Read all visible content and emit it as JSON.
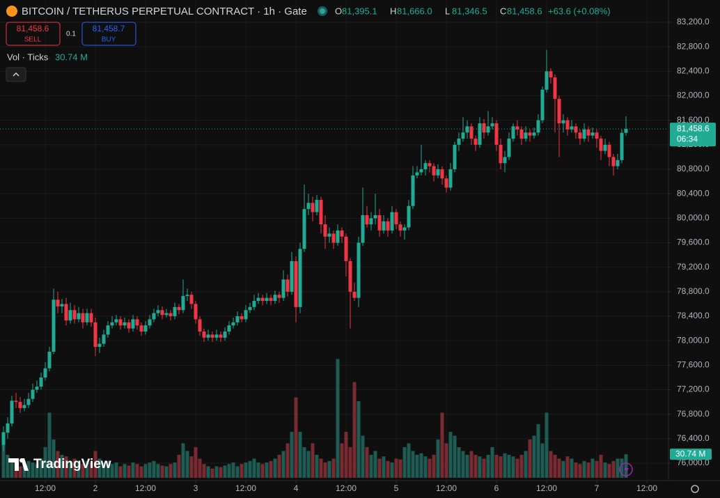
{
  "chart_data": {
    "type": "candlestick",
    "title": "BITCOIN / TETHERUS PERPETUAL CONTRACT · 1h · Gate",
    "ohlc": [
      {
        "label": "O",
        "value": "81,395.1"
      },
      {
        "label": "H",
        "value": "81,666.0"
      },
      {
        "label": "L",
        "value": "81,346.5"
      },
      {
        "label": "C",
        "value": "81,458.6"
      }
    ],
    "change": "+63.6 (+0.08%)",
    "sell": {
      "price": "81,458.6",
      "label": "SELL"
    },
    "spread": "0.1",
    "buy": {
      "price": "81,458.7",
      "label": "BUY"
    },
    "volume_legend": "Vol · Ticks",
    "volume_last_label": "30.74 M",
    "last_price": {
      "value": 81458.6,
      "label": "81,458.6"
    },
    "countdown": "06:34",
    "watermark": "TradingView",
    "up_color": "#22ab94",
    "down_color": "#f23645",
    "volume_up_color": "#1e5b52",
    "volume_down_color": "#7a2b31",
    "grid": true,
    "xlim": [
      -0.833,
      159.167
    ],
    "ylim": [
      75716,
      83564
    ],
    "yticks": [
      {
        "value": 83200,
        "label": "83,200.0"
      },
      {
        "value": 82800,
        "label": "82,800.0"
      },
      {
        "value": 82400,
        "label": "82,400.0"
      },
      {
        "value": 82000,
        "label": "82,000.0"
      },
      {
        "value": 81600,
        "label": "81,600.0"
      },
      {
        "value": 81200,
        "label": "81,200.0"
      },
      {
        "value": 80800,
        "label": "80,800.0"
      },
      {
        "value": 80400,
        "label": "80,400.0"
      },
      {
        "value": 80000,
        "label": "80,000.0"
      },
      {
        "value": 79600,
        "label": "79,600.0"
      },
      {
        "value": 79200,
        "label": "79,200.0"
      },
      {
        "value": 78800,
        "label": "78,800.0"
      },
      {
        "value": 78400,
        "label": "78,400.0"
      },
      {
        "value": 78000,
        "label": "78,000.0"
      },
      {
        "value": 77600,
        "label": "77,600.0"
      },
      {
        "value": 77200,
        "label": "77,200.0"
      },
      {
        "value": 76800,
        "label": "76,800.0"
      },
      {
        "value": 76400,
        "label": "76,400.0"
      },
      {
        "value": 76000,
        "label": "76,000.0"
      }
    ],
    "xticks": [
      {
        "value": 10,
        "label": "12:00"
      },
      {
        "value": 22,
        "label": "2"
      },
      {
        "value": 34,
        "label": "12:00"
      },
      {
        "value": 46,
        "label": "3"
      },
      {
        "value": 58,
        "label": "12:00"
      },
      {
        "value": 70,
        "label": "4"
      },
      {
        "value": 82,
        "label": "12:00"
      },
      {
        "value": 94,
        "label": "5"
      },
      {
        "value": 106,
        "label": "12:00"
      },
      {
        "value": 118,
        "label": "6"
      },
      {
        "value": 130,
        "label": "12:00"
      },
      {
        "value": 142,
        "label": "7"
      },
      {
        "value": 154,
        "label": "12:00"
      }
    ],
    "candles": [
      [
        76300,
        76600,
        76200,
        76500
      ],
      [
        76500,
        76750,
        76400,
        76650
      ],
      [
        76650,
        77100,
        76600,
        77020
      ],
      [
        77020,
        77150,
        76900,
        77000
      ],
      [
        77000,
        77080,
        76820,
        76900
      ],
      [
        76900,
        77050,
        76850,
        76950
      ],
      [
        76950,
        77150,
        76900,
        77050
      ],
      [
        77050,
        77300,
        77000,
        77200
      ],
      [
        77200,
        77350,
        77150,
        77250
      ],
      [
        77250,
        77480,
        77200,
        77400
      ],
      [
        77400,
        77650,
        77350,
        77550
      ],
      [
        77550,
        77900,
        77500,
        77820
      ],
      [
        77820,
        78850,
        77780,
        78670
      ],
      [
        78670,
        78800,
        78450,
        78560
      ],
      [
        78560,
        78680,
        78450,
        78600
      ],
      [
        78600,
        78700,
        78250,
        78330
      ],
      [
        78330,
        78620,
        78280,
        78500
      ],
      [
        78500,
        78580,
        78280,
        78350
      ],
      [
        78350,
        78550,
        78300,
        78450
      ],
      [
        78450,
        78520,
        78200,
        78300
      ],
      [
        78300,
        78520,
        78250,
        78450
      ],
      [
        78450,
        78520,
        78230,
        78300
      ],
      [
        78300,
        78380,
        77750,
        77900
      ],
      [
        77900,
        78050,
        77800,
        77950
      ],
      [
        77950,
        78180,
        77900,
        78100
      ],
      [
        78100,
        78320,
        78050,
        78250
      ],
      [
        78250,
        78400,
        78200,
        78300
      ],
      [
        78300,
        78420,
        78250,
        78350
      ],
      [
        78350,
        78400,
        78180,
        78250
      ],
      [
        78250,
        78380,
        78200,
        78300
      ],
      [
        78300,
        78350,
        78130,
        78200
      ],
      [
        78200,
        78420,
        78150,
        78350
      ],
      [
        78350,
        78400,
        78180,
        78250
      ],
      [
        78250,
        78300,
        78080,
        78150
      ],
      [
        78150,
        78320,
        78100,
        78250
      ],
      [
        78250,
        78420,
        78200,
        78350
      ],
      [
        78350,
        78520,
        78300,
        78450
      ],
      [
        78450,
        78580,
        78400,
        78500
      ],
      [
        78500,
        78560,
        78350,
        78420
      ],
      [
        78420,
        78520,
        78380,
        78450
      ],
      [
        78450,
        78500,
        78330,
        78400
      ],
      [
        78400,
        78620,
        78350,
        78550
      ],
      [
        78550,
        78600,
        78430,
        78500
      ],
      [
        78500,
        79000,
        78450,
        78730
      ],
      [
        78730,
        78850,
        78650,
        78750
      ],
      [
        78750,
        78800,
        78520,
        78600
      ],
      [
        78600,
        78650,
        78280,
        78350
      ],
      [
        78350,
        78400,
        78080,
        78150
      ],
      [
        78150,
        78200,
        77980,
        78050
      ],
      [
        78050,
        78180,
        78000,
        78100
      ],
      [
        78100,
        78150,
        77980,
        78050
      ],
      [
        78050,
        78180,
        78000,
        78100
      ],
      [
        78100,
        78150,
        77980,
        78050
      ],
      [
        78050,
        78220,
        78000,
        78150
      ],
      [
        78150,
        78320,
        78100,
        78250
      ],
      [
        78250,
        78380,
        78200,
        78300
      ],
      [
        78300,
        78480,
        78250,
        78400
      ],
      [
        78400,
        78450,
        78300,
        78350
      ],
      [
        78350,
        78580,
        78300,
        78500
      ],
      [
        78500,
        78620,
        78450,
        78550
      ],
      [
        78550,
        78750,
        78500,
        78650
      ],
      [
        78650,
        78780,
        78600,
        78700
      ],
      [
        78700,
        78750,
        78580,
        78650
      ],
      [
        78650,
        78780,
        78600,
        78700
      ],
      [
        78700,
        78750,
        78580,
        78650
      ],
      [
        78650,
        78820,
        78600,
        78750
      ],
      [
        78750,
        78800,
        78620,
        78700
      ],
      [
        78700,
        79150,
        78650,
        79000
      ],
      [
        79000,
        79080,
        78720,
        78800
      ],
      [
        78800,
        79450,
        78750,
        79300
      ],
      [
        79300,
        79380,
        78300,
        78550
      ],
      [
        78550,
        79600,
        78450,
        79500
      ],
      [
        79500,
        80550,
        79450,
        80150
      ],
      [
        80150,
        80400,
        80050,
        80250
      ],
      [
        80250,
        80350,
        79950,
        80100
      ],
      [
        80100,
        80380,
        80050,
        80300
      ],
      [
        80300,
        80350,
        79750,
        79900
      ],
      [
        79900,
        80050,
        79500,
        79700
      ],
      [
        79700,
        79850,
        79600,
        79750
      ],
      [
        79750,
        79800,
        79500,
        79600
      ],
      [
        79600,
        79900,
        79550,
        79800
      ],
      [
        79800,
        79850,
        79600,
        79700
      ],
      [
        79700,
        79750,
        79050,
        79300
      ],
      [
        79300,
        79350,
        78200,
        78800
      ],
      [
        78800,
        78950,
        78650,
        78700
      ],
      [
        78700,
        79700,
        78550,
        79600
      ],
      [
        79600,
        80500,
        79550,
        80050
      ],
      [
        80050,
        80200,
        79850,
        79900
      ],
      [
        79900,
        80100,
        79800,
        80000
      ],
      [
        80000,
        80400,
        79900,
        80050
      ],
      [
        80050,
        80150,
        79700,
        79800
      ],
      [
        79800,
        80050,
        79750,
        79950
      ],
      [
        79950,
        80000,
        79700,
        79800
      ],
      [
        79800,
        80200,
        79750,
        80100
      ],
      [
        80100,
        80150,
        79820,
        79900
      ],
      [
        79900,
        79950,
        79700,
        79800
      ],
      [
        79800,
        79900,
        79650,
        79850
      ],
      [
        79850,
        80300,
        79800,
        80200
      ],
      [
        80200,
        80850,
        80150,
        80700
      ],
      [
        80700,
        80850,
        80650,
        80750
      ],
      [
        80750,
        81200,
        80700,
        80800
      ],
      [
        80800,
        80950,
        80700,
        80900
      ],
      [
        80900,
        80950,
        80750,
        80850
      ],
      [
        80850,
        80900,
        80600,
        80700
      ],
      [
        80700,
        80880,
        80650,
        80800
      ],
      [
        80800,
        80850,
        80550,
        80650
      ],
      [
        80650,
        80700,
        80420,
        80500
      ],
      [
        80500,
        80900,
        80450,
        80800
      ],
      [
        80800,
        81250,
        80750,
        81200
      ],
      [
        81200,
        81400,
        81100,
        81300
      ],
      [
        81300,
        81650,
        81250,
        81400
      ],
      [
        81400,
        81600,
        81300,
        81500
      ],
      [
        81500,
        81550,
        81200,
        81300
      ],
      [
        81300,
        81350,
        81100,
        81200
      ],
      [
        81200,
        81650,
        81150,
        81550
      ],
      [
        81550,
        81620,
        81300,
        81400
      ],
      [
        81400,
        81750,
        81350,
        81500
      ],
      [
        81500,
        81650,
        81450,
        81550
      ],
      [
        81550,
        81600,
        81100,
        81200
      ],
      [
        81200,
        81300,
        80800,
        80900
      ],
      [
        80900,
        81100,
        80750,
        81000
      ],
      [
        81000,
        81400,
        80950,
        81300
      ],
      [
        81300,
        81550,
        81250,
        81500
      ],
      [
        81500,
        81600,
        81350,
        81450
      ],
      [
        81450,
        81500,
        81200,
        81300
      ],
      [
        81300,
        81500,
        81250,
        81400
      ],
      [
        81400,
        81450,
        81250,
        81350
      ],
      [
        81350,
        81480,
        81300,
        81400
      ],
      [
        81400,
        81700,
        81350,
        81600
      ],
      [
        81600,
        82150,
        81550,
        82100
      ],
      [
        82100,
        82750,
        82050,
        82400
      ],
      [
        82400,
        82450,
        82200,
        82300
      ],
      [
        82300,
        82350,
        81400,
        81950
      ],
      [
        81950,
        82000,
        81000,
        81550
      ],
      [
        81550,
        81700,
        81400,
        81600
      ],
      [
        81600,
        81650,
        81350,
        81450
      ],
      [
        81450,
        81600,
        81400,
        81500
      ],
      [
        81500,
        81550,
        81300,
        81400
      ],
      [
        81400,
        81450,
        81200,
        81300
      ],
      [
        81300,
        81550,
        81250,
        81450
      ],
      [
        81450,
        81500,
        81250,
        81350
      ],
      [
        81350,
        81480,
        81300,
        81400
      ],
      [
        81400,
        81450,
        81150,
        81300
      ],
      [
        81300,
        81350,
        80950,
        81100
      ],
      [
        81100,
        81300,
        81050,
        81200
      ],
      [
        81200,
        81250,
        80850,
        81000
      ],
      [
        81000,
        81050,
        80700,
        80850
      ],
      [
        80850,
        81050,
        80800,
        80950
      ],
      [
        80950,
        81450,
        80900,
        81395.1
      ],
      [
        81395.1,
        81666,
        81346.5,
        81458.6
      ]
    ],
    "volumes": [
      60,
      30,
      25,
      20,
      15,
      18,
      22,
      20,
      18,
      25,
      40,
      85,
      50,
      35,
      30,
      28,
      22,
      25,
      20,
      18,
      22,
      20,
      35,
      25,
      20,
      22,
      18,
      20,
      15,
      18,
      16,
      20,
      18,
      15,
      18,
      20,
      22,
      18,
      16,
      15,
      18,
      20,
      30,
      45,
      35,
      28,
      40,
      25,
      18,
      15,
      12,
      15,
      14,
      16,
      18,
      20,
      15,
      18,
      20,
      22,
      25,
      20,
      18,
      20,
      22,
      25,
      30,
      35,
      45,
      60,
      105,
      60,
      40,
      35,
      45,
      30,
      25,
      20,
      22,
      25,
      155,
      45,
      60,
      40,
      125,
      100,
      55,
      40,
      30,
      35,
      25,
      28,
      22,
      20,
      25,
      24,
      40,
      45,
      35,
      30,
      32,
      28,
      25,
      30,
      50,
      85,
      45,
      60,
      55,
      40,
      35,
      30,
      35,
      30,
      28,
      25,
      30,
      40,
      30,
      28,
      32,
      30,
      28,
      25,
      30,
      35,
      50,
      55,
      70,
      45,
      85,
      35,
      30,
      25,
      22,
      28,
      25,
      20,
      18,
      22,
      20,
      25,
      22,
      30,
      20,
      18,
      22,
      25,
      25,
      30.74
    ]
  }
}
